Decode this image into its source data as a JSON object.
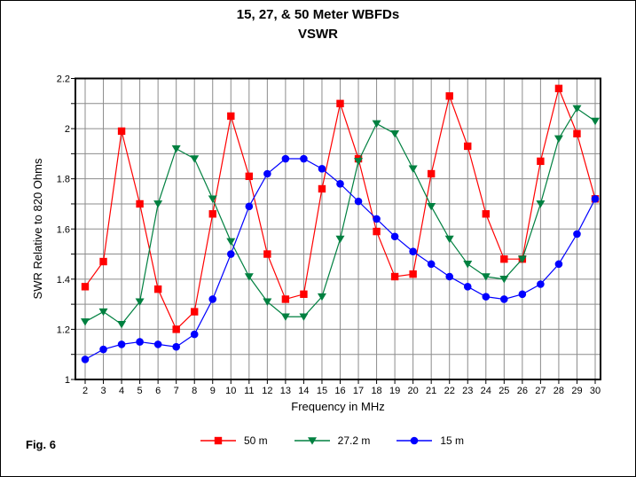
{
  "figure": {
    "caption": "Fig. 6"
  },
  "chart_data": {
    "type": "line",
    "title": "15, 27, & 50 Meter WBFDs",
    "subtitle": "VSWR",
    "xlabel": "Frequency in MHz",
    "ylabel": "SWR Relative to 820 Ohms",
    "x": [
      2,
      3,
      4,
      5,
      6,
      7,
      8,
      9,
      10,
      11,
      12,
      13,
      14,
      15,
      16,
      17,
      18,
      19,
      20,
      21,
      22,
      23,
      24,
      25,
      26,
      27,
      28,
      29,
      30
    ],
    "xlim": [
      2,
      30
    ],
    "ylim": [
      1.0,
      2.2
    ],
    "y_gridline_step": 0.1,
    "y_label_step": 0.2,
    "x_tick_step": 1,
    "grid": true,
    "legend_position": "bottom",
    "colors": {
      "grid": "#8c8c8c",
      "axis": "#000000",
      "background": "#ffffff"
    },
    "series": [
      {
        "name": "50 m",
        "color": "#ff0000",
        "marker": "square",
        "values": [
          1.37,
          1.47,
          1.99,
          1.7,
          1.36,
          1.2,
          1.27,
          1.66,
          2.05,
          1.81,
          1.5,
          1.32,
          1.34,
          1.76,
          2.1,
          1.88,
          1.59,
          1.41,
          1.42,
          1.82,
          2.13,
          1.93,
          1.66,
          1.48,
          1.48,
          1.87,
          2.16,
          1.98,
          1.72
        ]
      },
      {
        "name": "27.2 m",
        "color": "#008040",
        "marker": "triangle-down",
        "values": [
          1.23,
          1.27,
          1.22,
          1.31,
          1.7,
          1.92,
          1.88,
          1.72,
          1.55,
          1.41,
          1.31,
          1.25,
          1.25,
          1.33,
          1.56,
          1.87,
          2.02,
          1.98,
          1.84,
          1.69,
          1.56,
          1.46,
          1.41,
          1.4,
          1.48,
          1.7,
          1.96,
          2.08,
          2.03
        ]
      },
      {
        "name": "15 m",
        "color": "#0000ff",
        "marker": "circle",
        "values": [
          1.08,
          1.12,
          1.14,
          1.15,
          1.14,
          1.13,
          1.18,
          1.32,
          1.5,
          1.69,
          1.82,
          1.88,
          1.88,
          1.84,
          1.78,
          1.71,
          1.64,
          1.57,
          1.51,
          1.46,
          1.41,
          1.37,
          1.33,
          1.32,
          1.34,
          1.38,
          1.46,
          1.58,
          1.72
        ]
      }
    ]
  }
}
